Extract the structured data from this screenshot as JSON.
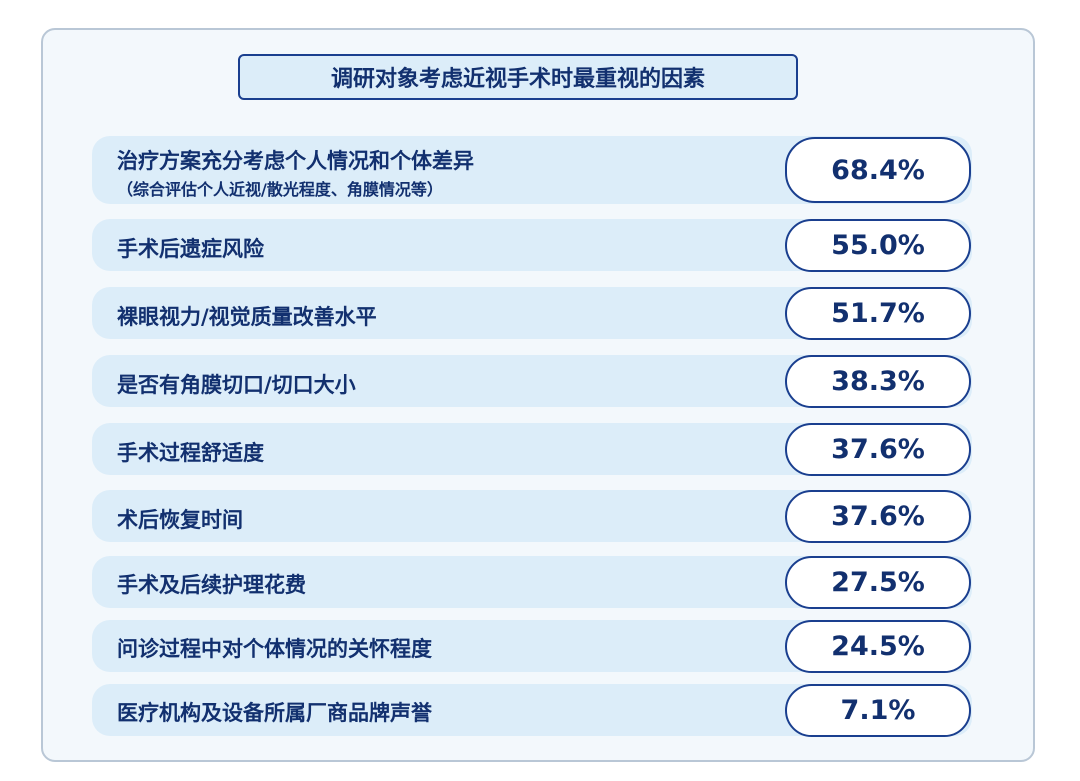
{
  "chart_data": {
    "type": "table",
    "title": "调研对象考虑近视手术时最重视的因素",
    "rows": [
      {
        "label": "治疗方案充分考虑个人情况和个体差异",
        "note": "（综合评估个人近视/散光程度、角膜情况等）",
        "value": 68.4,
        "display": "68.4%"
      },
      {
        "label": "手术后遗症风险",
        "value": 55.0,
        "display": "55.0%"
      },
      {
        "label": "裸眼视力/视觉质量改善水平",
        "value": 51.7,
        "display": "51.7%"
      },
      {
        "label": "是否有角膜切口/切口大小",
        "value": 38.3,
        "display": "38.3%"
      },
      {
        "label": "手术过程舒适度",
        "value": 37.6,
        "display": "37.6%"
      },
      {
        "label": "术后恢复时间",
        "value": 37.6,
        "display": "37.6%"
      },
      {
        "label": "手术及后续护理花费",
        "value": 27.5,
        "display": "27.5%"
      },
      {
        "label": "问诊过程中对个体情况的关怀程度",
        "value": 24.5,
        "display": "24.5%"
      },
      {
        "label": "医疗机构及设备所属厂商品牌声誉",
        "value": 7.1,
        "display": "7.1%"
      }
    ]
  },
  "colors": {
    "accent": "#1a3f8f",
    "text": "#12306f",
    "row_background": "#dcedf9",
    "panel_background": "#f3f8fc"
  }
}
